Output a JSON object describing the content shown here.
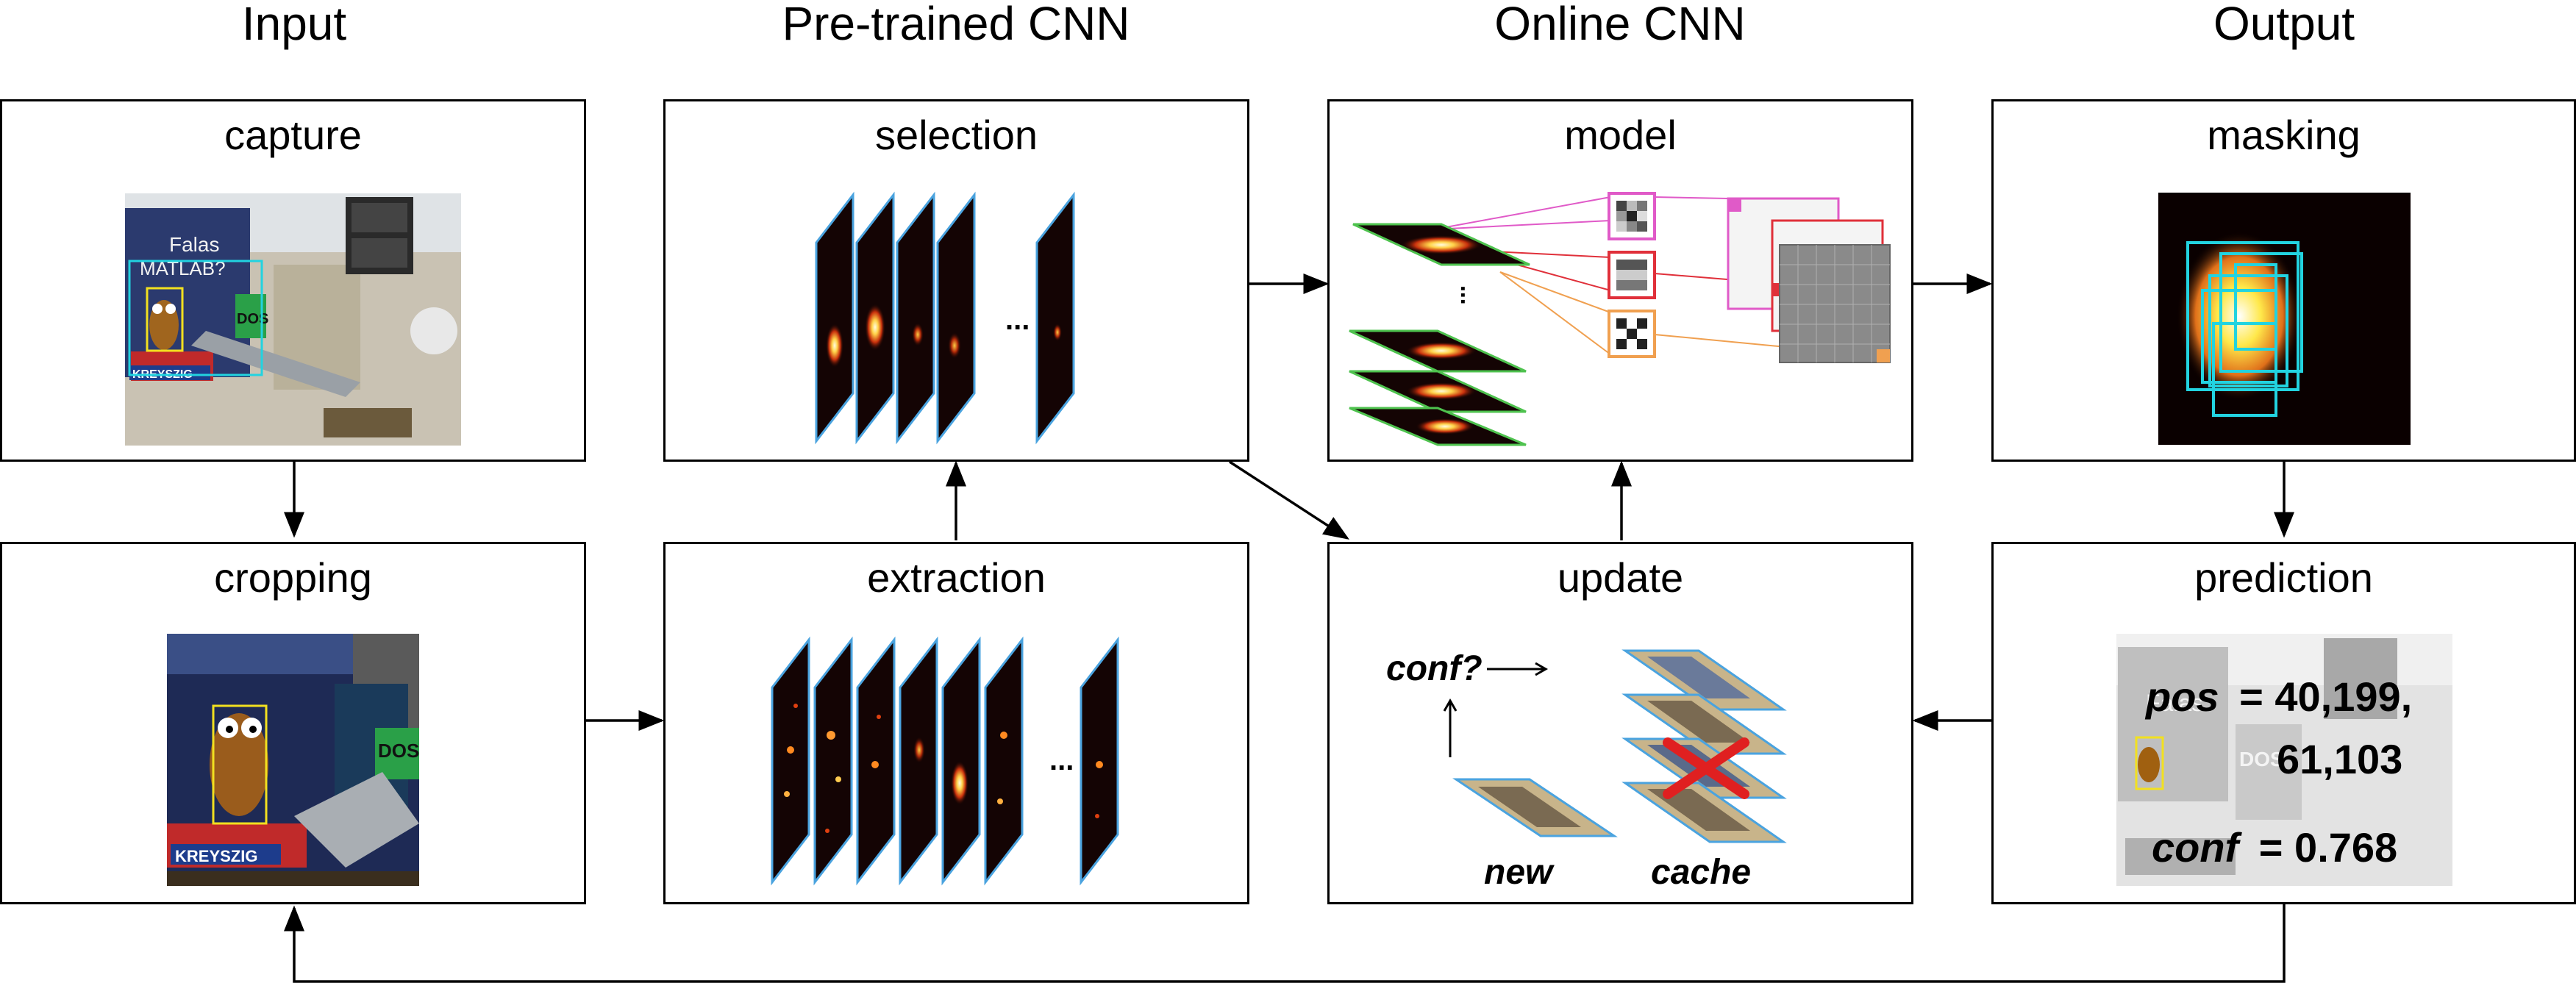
{
  "columns": {
    "input": "Input",
    "pretrained": "Pre-trained CNN",
    "online": "Online CNN",
    "output": "Output"
  },
  "boxes": {
    "capture": "capture",
    "selection": "selection",
    "model": "model",
    "masking": "masking",
    "cropping": "cropping",
    "extraction": "extraction",
    "update": "update",
    "prediction": "prediction"
  },
  "update_panel": {
    "conf_query": "conf?",
    "new_label": "new",
    "cache_label": "cache"
  },
  "prediction_panel": {
    "pos_label": "pos",
    "pos_eq": "= 40,199,",
    "pos_line2": "61,103",
    "conf_label": "conf",
    "conf_eq": "= 0.768"
  },
  "photo_text": {
    "book_title": "Falas",
    "book_subtitle": "MATLAB?",
    "sticker": "DOS",
    "brand": "KREYSZIG"
  },
  "ellipsis": "...",
  "colors": {
    "line": "#000000",
    "map_border": "#4aa3df",
    "map_dark": "#140404",
    "model_green": "#4ec24e",
    "pink": "#e05ac8",
    "red": "#e0303a",
    "orange": "#f0a050",
    "cyan": "#22d3e0",
    "yellow": "#f2e020",
    "cross": "#e02020"
  }
}
